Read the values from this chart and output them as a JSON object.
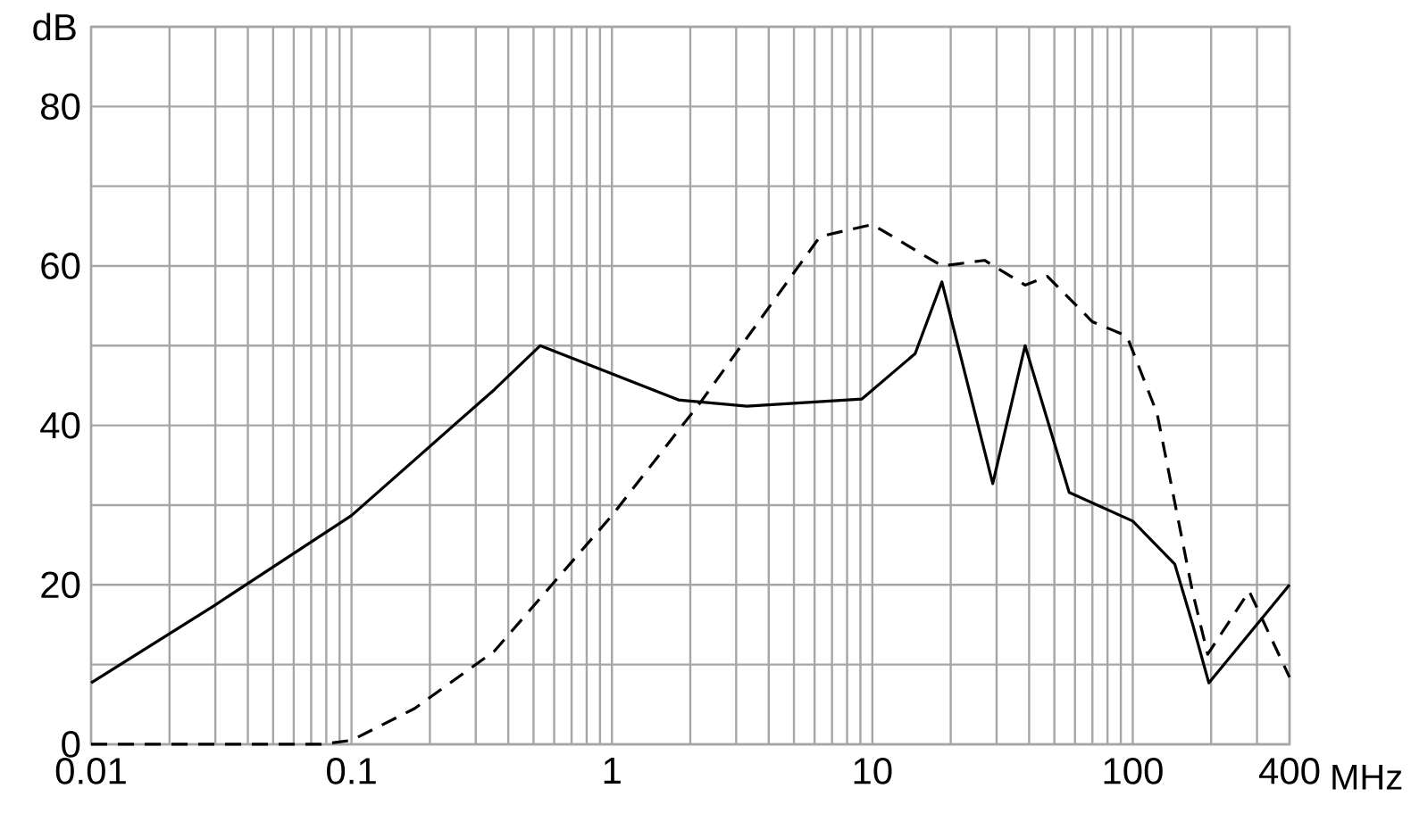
{
  "chart_data": {
    "type": "line",
    "xlabel": "MHz",
    "ylabel": "dB",
    "log": "x",
    "grid": true,
    "xlim": [
      0.01,
      400
    ],
    "ylim": [
      0,
      90
    ],
    "xticks": [
      0.01,
      {
        "value": 0.02,
        "label": null
      },
      {
        "value": 0.03,
        "label": null
      },
      {
        "value": 0.04,
        "label": null
      },
      {
        "value": 0.05,
        "label": null
      },
      {
        "value": 0.06,
        "label": null
      },
      {
        "value": 0.07,
        "label": null
      },
      {
        "value": 0.08,
        "label": null
      },
      {
        "value": 0.09,
        "label": null
      },
      0.1,
      {
        "value": 0.2,
        "label": null
      },
      {
        "value": 0.3,
        "label": null
      },
      {
        "value": 0.4,
        "label": null
      },
      {
        "value": 0.5,
        "label": null
      },
      {
        "value": 0.6,
        "label": null
      },
      {
        "value": 0.7,
        "label": null
      },
      {
        "value": 0.8,
        "label": null
      },
      {
        "value": 0.9,
        "label": null
      },
      1,
      {
        "value": 2,
        "label": null
      },
      {
        "value": 3,
        "label": null
      },
      {
        "value": 4,
        "label": null
      },
      {
        "value": 5,
        "label": null
      },
      {
        "value": 6,
        "label": null
      },
      {
        "value": 7,
        "label": null
      },
      {
        "value": 8,
        "label": null
      },
      {
        "value": 9,
        "label": null
      },
      10,
      {
        "value": 20,
        "label": null
      },
      {
        "value": 30,
        "label": null
      },
      {
        "value": 40,
        "label": null
      },
      {
        "value": 50,
        "label": null
      },
      {
        "value": 60,
        "label": null
      },
      {
        "value": 70,
        "label": null
      },
      {
        "value": 80,
        "label": null
      },
      {
        "value": 90,
        "label": null
      },
      100,
      {
        "value": 200,
        "label": null
      },
      {
        "value": 300,
        "label": null
      },
      400
    ],
    "yticks": [
      0,
      {
        "value": 10,
        "label": null
      },
      20,
      {
        "value": 30,
        "label": null
      },
      40,
      {
        "value": 50,
        "label": null
      },
      60,
      {
        "value": 70,
        "label": null
      },
      80,
      {
        "value": 90,
        "label": null
      }
    ],
    "series": [
      {
        "color": "#000000",
        "line_style": "solid",
        "x": [
          0.01,
          0.0297,
          0.1,
          0.354,
          0.53,
          1.8,
          3.3,
          9.1,
          14.6,
          18.5,
          29,
          38.6,
          57,
          100,
          145,
          170,
          196,
          400
        ],
        "values": [
          7.7,
          17.4,
          28.7,
          44.5,
          50,
          43.2,
          42.4,
          43.3,
          49,
          58,
          32.7,
          50,
          31.6,
          28,
          22.6,
          15,
          7.7,
          20
        ]
      },
      {
        "color": "#000000",
        "line_style": "dashed",
        "x": [
          0.01,
          0.076,
          0.1,
          0.175,
          0.354,
          1,
          2.2,
          6.3,
          10,
          18.5,
          27,
          38.6,
          47,
          70,
          95,
          124,
          170,
          194,
          280,
          400
        ],
        "values": [
          0,
          0,
          0.5,
          4.5,
          11.7,
          28.7,
          43,
          63.7,
          65.2,
          60,
          60.7,
          57.6,
          58.7,
          53,
          51.2,
          41.5,
          19,
          11.3,
          19.2,
          8.4
        ]
      }
    ]
  }
}
